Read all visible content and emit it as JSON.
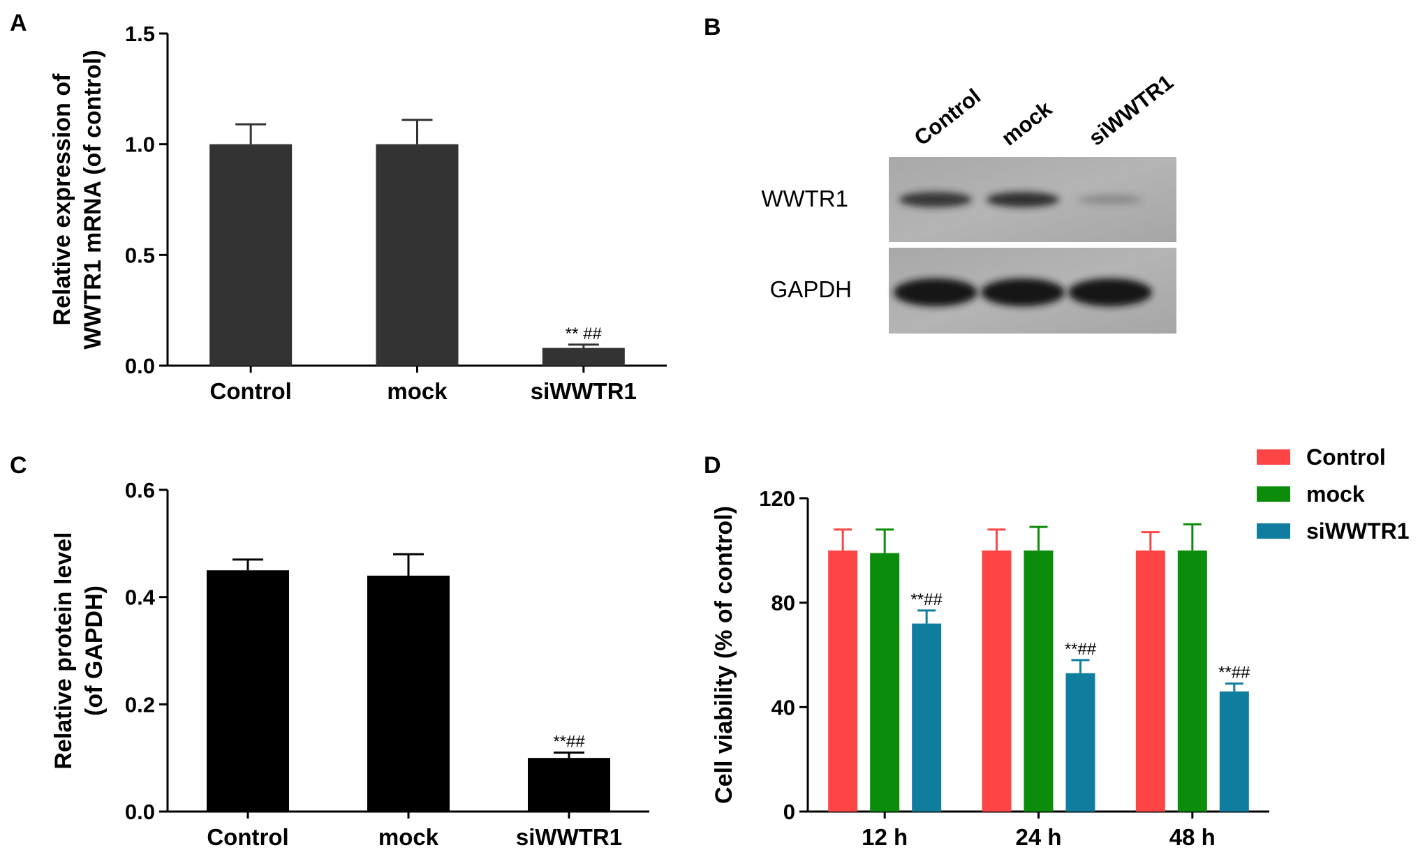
{
  "panels": {
    "A": "A",
    "B": "B",
    "C": "C",
    "D": "D"
  },
  "blot": {
    "lanes": [
      "Control",
      "mock",
      "siWWTR1"
    ],
    "rows": [
      "WWTR1",
      "GAPDH"
    ],
    "band_intensity": {
      "WWTR1": [
        0.85,
        0.9,
        0.25
      ],
      "GAPDH": [
        1.0,
        1.0,
        1.0
      ]
    }
  },
  "chart_data": [
    {
      "id": "A",
      "type": "bar",
      "categories": [
        "Control",
        "mock",
        "siWWTR1"
      ],
      "values": [
        1.0,
        1.0,
        0.08
      ],
      "errors": [
        0.09,
        0.11,
        0.015
      ],
      "annotations": [
        "",
        "",
        "** ##"
      ],
      "ylabel_lines": [
        "Relative expression of",
        "WWTR1 mRNA (of control)"
      ],
      "ylim": [
        0,
        1.5
      ],
      "yticks": [
        "0.0",
        "0.5",
        "1.0",
        "1.5"
      ],
      "ytick_values": [
        0,
        0.5,
        1.0,
        1.5
      ],
      "bar_color": "#333333"
    },
    {
      "id": "C",
      "type": "bar",
      "categories": [
        "Control",
        "mock",
        "siWWTR1"
      ],
      "values": [
        0.45,
        0.44,
        0.1
      ],
      "errors": [
        0.02,
        0.04,
        0.01
      ],
      "annotations": [
        "",
        "",
        "**##"
      ],
      "ylabel_lines": [
        "Relative protein level",
        "(of GAPDH)"
      ],
      "ylim": [
        0,
        0.6
      ],
      "yticks": [
        "0.0",
        "0.2",
        "0.4",
        "0.6"
      ],
      "ytick_values": [
        0,
        0.2,
        0.4,
        0.6
      ],
      "bar_color": "#000000"
    },
    {
      "id": "D",
      "type": "bar",
      "categories": [
        "12 h",
        "24 h",
        "48 h"
      ],
      "series": [
        {
          "name": "Control",
          "color": "#fe4545",
          "values": [
            100,
            100,
            100
          ],
          "errors": [
            8,
            8,
            7
          ]
        },
        {
          "name": "mock",
          "color": "#0b8c0b",
          "values": [
            99,
            100,
            100
          ],
          "errors": [
            9,
            9,
            10
          ]
        },
        {
          "name": "siWWTR1",
          "color": "#0f7d9d",
          "values": [
            72,
            53,
            46
          ],
          "errors": [
            5,
            5,
            3
          ]
        }
      ],
      "annotations": [
        "**##",
        "**##",
        "**##"
      ],
      "ylabel": "Cell viability (% of control)",
      "ylim": [
        0,
        120
      ],
      "yticks": [
        "0",
        "40",
        "80",
        "120"
      ],
      "ytick_values": [
        0,
        40,
        80,
        120
      ],
      "legend_position": "top-right"
    }
  ]
}
